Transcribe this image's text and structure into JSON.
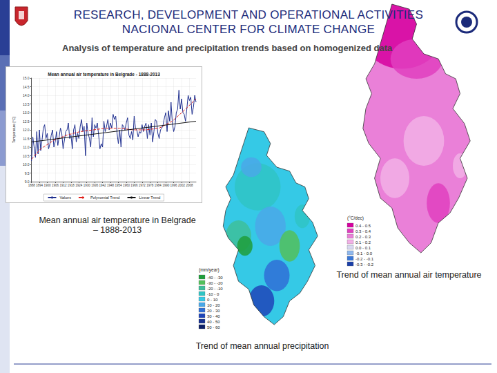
{
  "header": {
    "title_line1": "RESEARCH, DEVELOPMENT AND OPERATIONAL ACTIVITIES",
    "title_line2": "NACIONAL CENTER FOR CLIMATE CHANGE",
    "subtitle": "Analysis of temperature and precipitation trends based on homogenized data"
  },
  "captions": {
    "temperature_chart": "Mean annual air temperature in Belgrade – 1888-2013",
    "temperature_map": "Trend of mean annual air temperature",
    "precipitation_map": "Trend of mean annual precipitation"
  },
  "chart_data": {
    "type": "line",
    "title": "Mean annual air temperature in Belgrade - 1888-2013",
    "ylabel": "Temperature [°C]",
    "xlim": [
      1888,
      2013
    ],
    "xticks": [
      1888,
      1894,
      1900,
      1906,
      1912,
      1918,
      1924,
      1930,
      1936,
      1942,
      1948,
      1954,
      1960,
      1966,
      1972,
      1978,
      1984,
      1990,
      1996,
      2002,
      2008
    ],
    "ylim": [
      9.0,
      15.0
    ],
    "yticks": [
      {
        "value": 9,
        "label": "9.0"
      },
      9.5,
      {
        "value": 10,
        "label": "10.0"
      },
      10.5,
      {
        "value": 11,
        "label": "11.0"
      },
      11.5,
      {
        "value": 12,
        "label": "12.0"
      },
      12.5,
      {
        "value": 13,
        "label": "13.0"
      },
      13.5,
      {
        "value": 14,
        "label": "14.0"
      },
      14.5,
      {
        "value": 15,
        "label": "15.0"
      }
    ],
    "grid": true,
    "legend": "bottom",
    "series": [
      {
        "name": "Values",
        "color": "#1f2f8f",
        "line_style": "solid",
        "x": [
          1888,
          1889,
          1890,
          1891,
          1892,
          1893,
          1894,
          1895,
          1896,
          1897,
          1898,
          1899,
          1900,
          1901,
          1902,
          1903,
          1904,
          1905,
          1906,
          1907,
          1908,
          1909,
          1910,
          1911,
          1912,
          1913,
          1914,
          1915,
          1916,
          1917,
          1918,
          1919,
          1920,
          1921,
          1922,
          1923,
          1924,
          1925,
          1926,
          1927,
          1928,
          1929,
          1930,
          1931,
          1932,
          1933,
          1934,
          1935,
          1936,
          1937,
          1938,
          1939,
          1940,
          1941,
          1942,
          1943,
          1944,
          1945,
          1946,
          1947,
          1948,
          1949,
          1950,
          1951,
          1952,
          1953,
          1954,
          1955,
          1956,
          1957,
          1958,
          1959,
          1960,
          1961,
          1962,
          1963,
          1964,
          1965,
          1966,
          1967,
          1968,
          1969,
          1970,
          1971,
          1972,
          1973,
          1974,
          1975,
          1976,
          1977,
          1978,
          1979,
          1980,
          1981,
          1982,
          1983,
          1984,
          1985,
          1986,
          1987,
          1988,
          1989,
          1990,
          1991,
          1992,
          1993,
          1994,
          1995,
          1996,
          1997,
          1998,
          1999,
          2000,
          2001,
          2002,
          2003,
          2004,
          2005,
          2006,
          2007,
          2008,
          2009,
          2010,
          2011,
          2012,
          2013
        ],
        "values": [
          10.2,
          11.6,
          11.0,
          10.4,
          11.9,
          10.6,
          12.0,
          10.8,
          11.4,
          12.1,
          12.3,
          11.5,
          11.8,
          10.9,
          11.2,
          11.7,
          12.0,
          11.0,
          11.3,
          11.9,
          11.1,
          11.6,
          12.1,
          11.8,
          10.9,
          11.4,
          11.9,
          12.0,
          12.4,
          11.5,
          11.7,
          10.9,
          12.0,
          12.3,
          11.3,
          11.8,
          11.5,
          12.2,
          12.6,
          11.9,
          12.2,
          10.5,
          12.4,
          11.8,
          11.5,
          11.0,
          12.7,
          11.6,
          12.3,
          12.1,
          12.4,
          11.7,
          10.9,
          11.2,
          11.0,
          12.5,
          11.9,
          12.2,
          12.6,
          12.0,
          12.4,
          12.1,
          12.9,
          12.6,
          12.8,
          11.8,
          11.2,
          12.0,
          11.0,
          12.3,
          12.2,
          12.0,
          12.4,
          12.7,
          11.7,
          11.5,
          11.9,
          11.4,
          12.8,
          12.1,
          12.0,
          11.6,
          11.9,
          11.8,
          12.3,
          11.9,
          12.2,
          12.4,
          11.5,
          12.3,
          11.7,
          12.4,
          11.3,
          11.9,
          12.6,
          12.5,
          11.8,
          11.5,
          12.0,
          12.1,
          12.3,
          12.7,
          13.0,
          11.9,
          13.1,
          12.5,
          13.6,
          12.4,
          11.9,
          12.2,
          13.0,
          13.2,
          14.3,
          13.2,
          13.8,
          13.0,
          12.9,
          12.5,
          13.2,
          14.0,
          13.7,
          13.9,
          12.9,
          13.3,
          14.0,
          13.6
        ]
      },
      {
        "name": "Polynomial Trend",
        "color": "#e0201b",
        "line_style": "dashed",
        "x": [
          1888,
          1895,
          1905,
          1915,
          1925,
          1935,
          1945,
          1955,
          1965,
          1975,
          1985,
          1995,
          2005,
          2013
        ],
        "values": [
          10.3,
          10.9,
          11.4,
          11.7,
          11.9,
          12.0,
          12.1,
          12.1,
          12.0,
          12.0,
          12.1,
          12.5,
          13.2,
          13.8
        ]
      },
      {
        "name": "Linear Trend",
        "color": "#111111",
        "line_style": "solid",
        "x": [
          1888,
          2013
        ],
        "values": [
          11.3,
          12.5
        ]
      }
    ]
  },
  "maps": [
    {
      "caption": "Trend of mean annual air temperature",
      "legend_title": "(°C/dec)",
      "classes": [
        {
          "label": "0.4 - 0.5",
          "color": "#d6009f"
        },
        {
          "label": "0.3 - 0.4",
          "color": "#e040c0"
        },
        {
          "label": "0.2 - 0.3",
          "color": "#ea80d8"
        },
        {
          "label": "0.1 - 0.2",
          "color": "#f2b0e6"
        },
        {
          "label": "0.0 - 0.1",
          "color": "#d8d8f0"
        },
        {
          "label": "-0.1 - 0.0",
          "color": "#8fb8ee"
        },
        {
          "label": "-0.2 - -0.1",
          "color": "#3a78d8"
        },
        {
          "label": "-0.3 - -0.2",
          "color": "#1a3fa8"
        }
      ]
    },
    {
      "caption": "Trend of mean annual precipitation",
      "legend_title": "(mm/year)",
      "classes": [
        {
          "label": "-40 - -30",
          "color": "#1f9e3a"
        },
        {
          "label": "-30 - -20",
          "color": "#52c05a"
        },
        {
          "label": "-20 - -10",
          "color": "#3dbf9a"
        },
        {
          "label": "-10 - 0",
          "color": "#2fc4c4"
        },
        {
          "label": "0 - 10",
          "color": "#35c9e6"
        },
        {
          "label": "10 - 20",
          "color": "#4aa8e8"
        },
        {
          "label": "20 - 30",
          "color": "#2f6fd6"
        },
        {
          "label": "30 - 40",
          "color": "#1f45b8"
        },
        {
          "label": "40 - 50",
          "color": "#16308f"
        },
        {
          "label": "50 - 60",
          "color": "#0d1f66"
        }
      ]
    }
  ]
}
